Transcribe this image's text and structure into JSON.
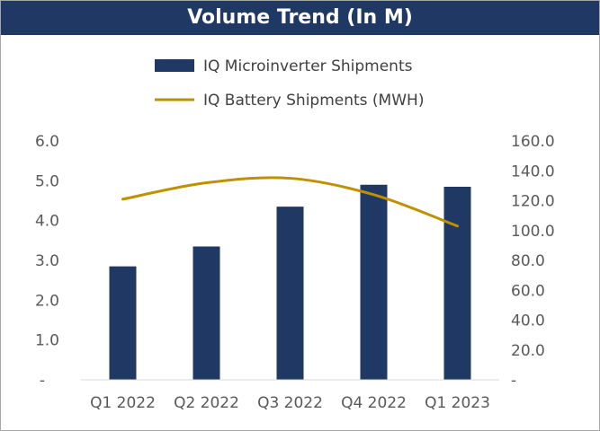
{
  "chart_data": {
    "type": "bar+line",
    "title": "Volume Trend (In M)",
    "categories": [
      "Q1 2022",
      "Q2 2022",
      "Q3 2022",
      "Q4 2022",
      "Q1 2023"
    ],
    "series": [
      {
        "name": "IQ Microinverter Shipments",
        "type": "bar",
        "axis": "left",
        "values": [
          2.85,
          3.35,
          4.35,
          4.9,
          4.85
        ],
        "color": "#1f3864"
      },
      {
        "name": "IQ Battery Shipments (MWH)",
        "type": "line",
        "axis": "right",
        "values": [
          121,
          132,
          135,
          124,
          103
        ],
        "color": "#bf9000"
      }
    ],
    "left_axis": {
      "ylim": [
        0,
        6
      ],
      "ticks": [
        "-",
        "1.0",
        "2.0",
        "3.0",
        "4.0",
        "5.0",
        "6.0"
      ]
    },
    "right_axis": {
      "ylim": [
        0,
        160
      ],
      "ticks": [
        "-",
        "20.0",
        "40.0",
        "60.0",
        "80.0",
        "100.0",
        "120.0",
        "140.0",
        "160.0"
      ]
    },
    "legend_position": "top",
    "grid": false
  }
}
